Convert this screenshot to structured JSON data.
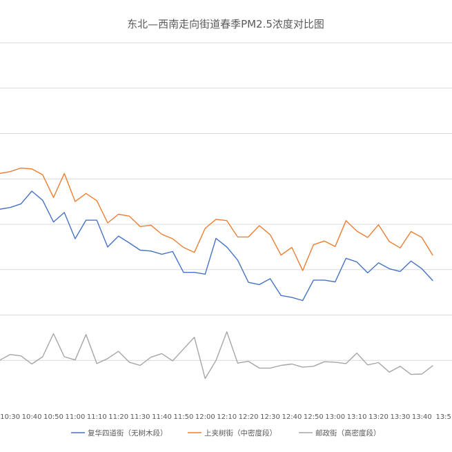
{
  "chart_data": {
    "type": "line",
    "title": "东北—西南走向街道春季PM2.5浓度对比图",
    "xlabel": "",
    "ylabel": "",
    "x": [
      "10:25",
      "10:30",
      "10:35",
      "10:40",
      "10:45",
      "10:50",
      "10:55",
      "11:00",
      "11:05",
      "11:10",
      "11:15",
      "11:20",
      "11:25",
      "11:30",
      "11:35",
      "11:40",
      "11:45",
      "11:50",
      "11:55",
      "12:00",
      "12:05",
      "12:10",
      "12:15",
      "12:20",
      "12:25",
      "12:30",
      "12:35",
      "12:40",
      "12:45",
      "12:50",
      "12:55",
      "13:00",
      "13:05",
      "13:10",
      "13:15",
      "13:20",
      "13:25",
      "13:30",
      "13:35",
      "13:40",
      "13:45"
    ],
    "x_tick_labels": [
      "10:30",
      "10:40",
      "10:50",
      "11:00",
      "11:10",
      "11:20",
      "11:30",
      "11:40",
      "11:50",
      "12:00",
      "12:10",
      "12:20",
      "12:30",
      "12:40",
      "12:50",
      "13:00",
      "13:10",
      "13:20",
      "13:30",
      "13:40",
      "13:5"
    ],
    "gridlines": 8,
    "grid": true,
    "legend_position": "bottom",
    "series": [
      {
        "name": "复华四道街（无树木段）",
        "color": "#4472c4",
        "values": [
          4.33,
          4.37,
          4.45,
          4.73,
          4.53,
          4.05,
          4.26,
          3.68,
          4.09,
          4.09,
          3.5,
          3.74,
          3.59,
          3.43,
          3.41,
          3.34,
          3.4,
          2.94,
          2.94,
          2.9,
          3.69,
          3.5,
          3.21,
          2.72,
          2.67,
          2.8,
          2.43,
          2.39,
          2.32,
          2.77,
          2.77,
          2.73,
          3.25,
          3.17,
          2.93,
          3.15,
          3.02,
          2.96,
          3.19,
          3.02,
          2.76
        ]
      },
      {
        "name": "上夹树街（中密度段）",
        "color": "#ed7d31",
        "values": [
          5.12,
          5.16,
          5.24,
          5.22,
          5.09,
          4.59,
          5.12,
          4.5,
          4.68,
          4.52,
          4.03,
          4.22,
          4.18,
          3.95,
          3.98,
          3.78,
          3.68,
          3.49,
          3.38,
          3.91,
          4.11,
          4.08,
          3.72,
          3.72,
          3.97,
          3.77,
          3.32,
          3.49,
          2.98,
          3.55,
          3.63,
          3.51,
          4.08,
          3.85,
          3.71,
          3.99,
          3.62,
          3.48,
          3.84,
          3.71,
          3.32
        ]
      },
      {
        "name": "邮政街（高密度段）",
        "color": "#a5a5a5",
        "values": [
          1.0,
          1.13,
          1.1,
          0.92,
          1.08,
          1.59,
          1.08,
          1.01,
          1.57,
          0.93,
          1.04,
          1.2,
          0.96,
          0.89,
          1.07,
          1.15,
          0.99,
          1.25,
          1.51,
          0.6,
          1.0,
          1.63,
          0.94,
          0.98,
          0.83,
          0.83,
          0.89,
          0.92,
          0.85,
          0.87,
          0.97,
          0.96,
          0.93,
          1.16,
          0.9,
          0.95,
          0.74,
          0.87,
          0.69,
          0.7,
          0.88
        ]
      }
    ]
  }
}
